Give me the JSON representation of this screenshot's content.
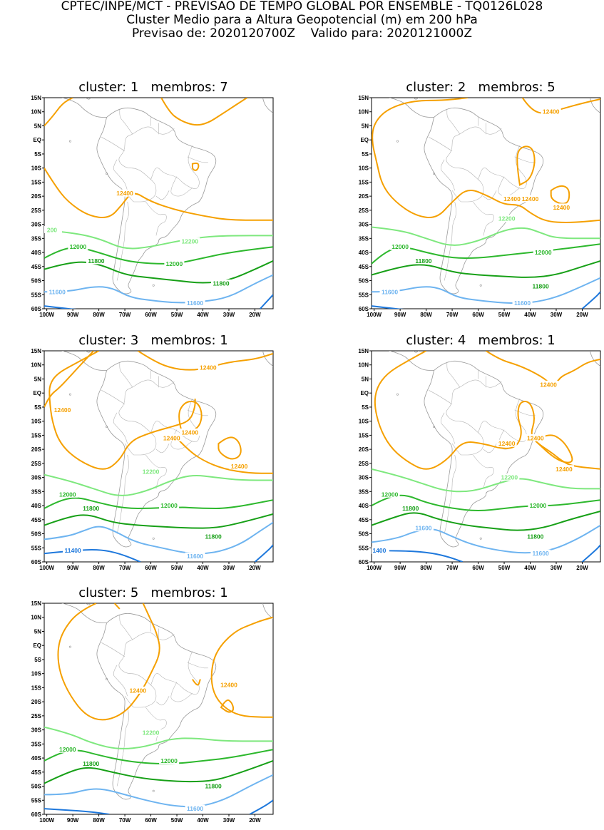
{
  "header": {
    "line1": "CPTEC/INPE/MCT - PREVISAO DE TEMPO GLOBAL POR ENSEMBLE - TQ0126L028",
    "line2": "Cluster Medio para a Altura Geopotencial (m) em 200 hPa",
    "line3": "Previsao de: 2020120700Z    Valido para: 2020121000Z"
  },
  "axes": {
    "lat_labels": [
      "15N",
      "10N",
      "5N",
      "EQ",
      "5S",
      "10S",
      "15S",
      "20S",
      "25S",
      "30S",
      "35S",
      "40S",
      "45S",
      "50S",
      "55S",
      "60S"
    ],
    "lon_labels": [
      "100W",
      "90W",
      "80W",
      "70W",
      "60W",
      "50W",
      "40W",
      "30W",
      "20W"
    ]
  },
  "colors": {
    "c12400": "#f5a000",
    "c12200": "#7ee87e",
    "c12000": "#2db82d",
    "c11800": "#17a017",
    "c11600": "#6eb4f0",
    "c11400": "#1e78dc",
    "coast": "#9a9a9a"
  },
  "panels": [
    {
      "title": "cluster: 1   membros: 7",
      "labels": [
        {
          "text": "12400",
          "lon": -70,
          "lat": -19,
          "color": "c12400"
        },
        {
          "text": "200",
          "lon": -98,
          "lat": -32,
          "color": "c12200"
        },
        {
          "text": "12200",
          "lon": -45,
          "lat": -36,
          "color": "c12200"
        },
        {
          "text": "12000",
          "lon": -88,
          "lat": -38,
          "color": "c12000"
        },
        {
          "text": "12000",
          "lon": -51,
          "lat": -44,
          "color": "c12000"
        },
        {
          "text": "11800",
          "lon": -81,
          "lat": -43,
          "color": "c11800"
        },
        {
          "text": "11800",
          "lon": -33,
          "lat": -51,
          "color": "c11800"
        },
        {
          "text": "11600",
          "lon": -96,
          "lat": -54,
          "color": "c11600"
        },
        {
          "text": "11600",
          "lon": -43,
          "lat": -58,
          "color": "c11600"
        }
      ]
    },
    {
      "title": "cluster: 2   membros: 5",
      "labels": [
        {
          "text": "12400",
          "lon": -32,
          "lat": 10,
          "color": "c12400"
        },
        {
          "text": "12400",
          "lon": -47,
          "lat": -21,
          "color": "c12400"
        },
        {
          "text": "12400",
          "lon": -40,
          "lat": -21,
          "color": "c12400"
        },
        {
          "text": "12400",
          "lon": -28,
          "lat": -24,
          "color": "c12400"
        },
        {
          "text": "12200",
          "lon": -49,
          "lat": -28,
          "color": "c12200"
        },
        {
          "text": "12000",
          "lon": -90,
          "lat": -38,
          "color": "c12000"
        },
        {
          "text": "12000",
          "lon": -35,
          "lat": -40,
          "color": "c12000"
        },
        {
          "text": "11800",
          "lon": -81,
          "lat": -43,
          "color": "c11800"
        },
        {
          "text": "11800",
          "lon": -36,
          "lat": -52,
          "color": "c11800"
        },
        {
          "text": "11600",
          "lon": -94,
          "lat": -54,
          "color": "c11600"
        },
        {
          "text": "11600",
          "lon": -43,
          "lat": -58,
          "color": "c11600"
        }
      ]
    },
    {
      "title": "cluster: 3   membros: 1",
      "labels": [
        {
          "text": "12400",
          "lon": -38,
          "lat": 9,
          "color": "c12400"
        },
        {
          "text": "12400",
          "lon": -94,
          "lat": -6,
          "color": "c12400"
        },
        {
          "text": "12400",
          "lon": -45,
          "lat": -14,
          "color": "c12400"
        },
        {
          "text": "12400",
          "lon": -52,
          "lat": -16,
          "color": "c12400"
        },
        {
          "text": "12400",
          "lon": -26,
          "lat": -26,
          "color": "c12400"
        },
        {
          "text": "12200",
          "lon": -60,
          "lat": -28,
          "color": "c12200"
        },
        {
          "text": "12000",
          "lon": -92,
          "lat": -36,
          "color": "c12000"
        },
        {
          "text": "12000",
          "lon": -53,
          "lat": -40,
          "color": "c12000"
        },
        {
          "text": "11800",
          "lon": -83,
          "lat": -41,
          "color": "c11800"
        },
        {
          "text": "11800",
          "lon": -36,
          "lat": -51,
          "color": "c11800"
        },
        {
          "text": "11400",
          "lon": -90,
          "lat": -56,
          "color": "c11400"
        },
        {
          "text": "11600",
          "lon": -43,
          "lat": -58,
          "color": "c11600"
        }
      ]
    },
    {
      "title": "cluster: 4   membros: 1",
      "labels": [
        {
          "text": "12400",
          "lon": -33,
          "lat": 3,
          "color": "c12400"
        },
        {
          "text": "12400",
          "lon": -49,
          "lat": -18,
          "color": "c12400"
        },
        {
          "text": "12400",
          "lon": -38,
          "lat": -16,
          "color": "c12400"
        },
        {
          "text": "12400",
          "lon": -27,
          "lat": -27,
          "color": "c12400"
        },
        {
          "text": "12200",
          "lon": -48,
          "lat": -30,
          "color": "c12200"
        },
        {
          "text": "12000",
          "lon": -94,
          "lat": -36,
          "color": "c12000"
        },
        {
          "text": "12000",
          "lon": -37,
          "lat": -40,
          "color": "c12000"
        },
        {
          "text": "11800",
          "lon": -86,
          "lat": -41,
          "color": "c11800"
        },
        {
          "text": "11800",
          "lon": -38,
          "lat": -51,
          "color": "c11800"
        },
        {
          "text": "11600",
          "lon": -81,
          "lat": -48,
          "color": "c11600"
        },
        {
          "text": "11600",
          "lon": -36,
          "lat": -57,
          "color": "c11600"
        },
        {
          "text": "1400",
          "lon": -98,
          "lat": -56,
          "color": "c11400"
        }
      ]
    },
    {
      "title": "cluster: 5   membros: 1",
      "labels": [
        {
          "text": "12400",
          "lon": -65,
          "lat": -16,
          "color": "c12400"
        },
        {
          "text": "12400",
          "lon": -30,
          "lat": -14,
          "color": "c12400"
        },
        {
          "text": "12200",
          "lon": -60,
          "lat": -31,
          "color": "c12200"
        },
        {
          "text": "12000",
          "lon": -92,
          "lat": -37,
          "color": "c12000"
        },
        {
          "text": "12000",
          "lon": -53,
          "lat": -41,
          "color": "c12000"
        },
        {
          "text": "11800",
          "lon": -83,
          "lat": -42,
          "color": "c11800"
        },
        {
          "text": "11800",
          "lon": -36,
          "lat": -50,
          "color": "c11800"
        },
        {
          "text": "11600",
          "lon": -43,
          "lat": -58,
          "color": "c11600"
        }
      ]
    }
  ]
}
